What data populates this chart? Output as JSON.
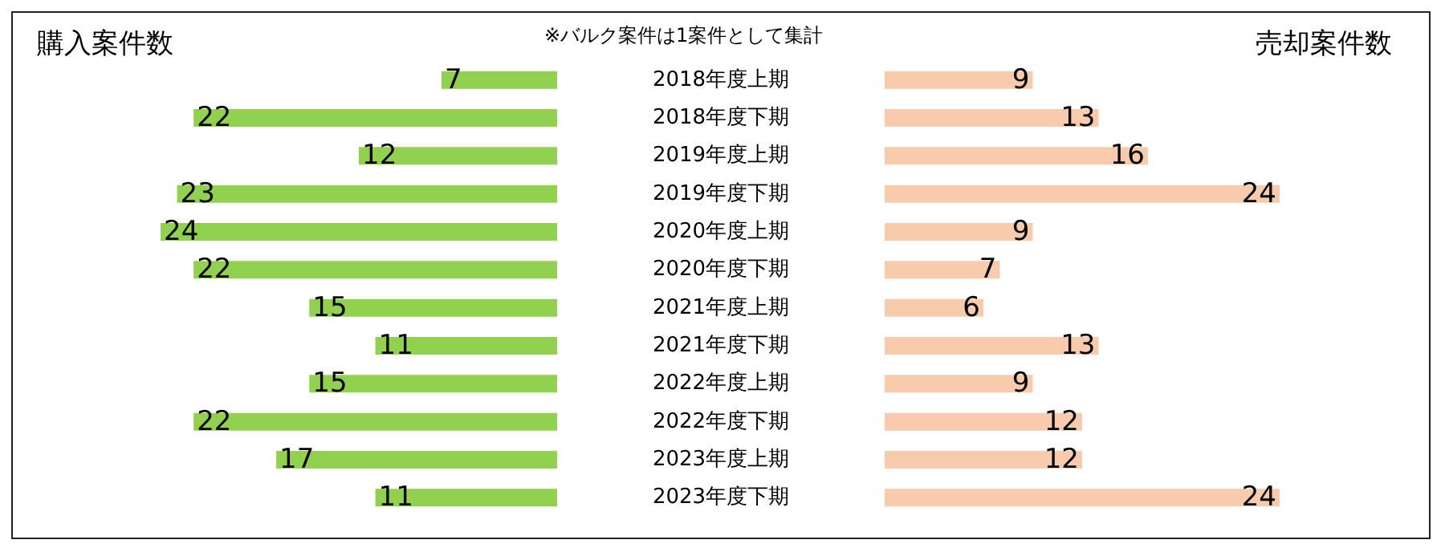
{
  "chart_data": [
    {
      "type": "bar",
      "orientation": "horizontal",
      "title": "購入案件数",
      "annotations": [
        "※バルク案件は1案件として集計"
      ],
      "categories": [
        "2018年度上期",
        "2018年度下期",
        "2019年度上期",
        "2019年度下期",
        "2020年度上期",
        "2020年度下期",
        "2021年度上期",
        "2021年度下期",
        "2022年度上期",
        "2022年度下期",
        "2023年度上期",
        "2023年度下期"
      ],
      "values": [
        7,
        22,
        12,
        23,
        24,
        22,
        15,
        11,
        15,
        22,
        17,
        11
      ],
      "color": "#92d050",
      "data_labels": true,
      "tick_labels": "y"
    },
    {
      "type": "bar",
      "orientation": "horizontal",
      "title": "売却案件数",
      "categories": [
        null,
        null,
        null,
        null,
        null,
        null,
        null,
        null,
        null,
        null,
        null,
        null
      ],
      "values": [
        9,
        13,
        16,
        24,
        9,
        7,
        6,
        13,
        9,
        12,
        12,
        24
      ],
      "color": "#f8cbad",
      "data_labels": true,
      "tick_labels": false
    }
  ]
}
